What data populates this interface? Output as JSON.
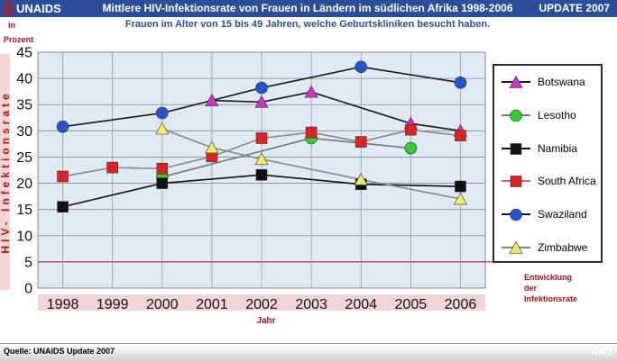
{
  "header": {
    "logo_text": "UNAIDS",
    "title": "Mittlere HIV-Infektionsrate von Frauen in Ländern im südlichen Afrika 1998-2006",
    "update": "UPDATE 2007",
    "subtitle": "Frauen im Alter von 15 bis 49 Jahren, welche Geburtskliniken besucht haben."
  },
  "colors": {
    "header_bg": "#2a4e99",
    "plot_bg": "#dfeaf5",
    "accent_red": "#b0121b",
    "band_pink": "#f4d5d5"
  },
  "footer": {
    "source": "Quelle: UNAIDS Update 2007",
    "mark": "RAO"
  },
  "chart_data": {
    "type": "line",
    "title": "Mittlere HIV-Infektionsrate von Frauen in Ländern im südlichen Afrika 1998-2006",
    "subtitle": "Frauen im Alter von 15 bis 49 Jahren, welche Geburtskliniken besucht haben.",
    "xlabel": "Jahr",
    "ylabel": "HIV- Infektionsrate",
    "unit_label_1": "in",
    "unit_label_2": "Prozent",
    "categories": [
      "1998",
      "1999",
      "2000",
      "2001",
      "2002",
      "2003",
      "2004",
      "2005",
      "2006"
    ],
    "yticks": [
      "0",
      "5",
      "10",
      "15",
      "20",
      "25",
      "30",
      "35",
      "40",
      "45"
    ],
    "ylim": [
      0,
      45
    ],
    "grid": true,
    "legend_position": "right",
    "reference_line": {
      "value": 5,
      "label": "Entwicklung\nder\nInfektionsrate"
    },
    "series": [
      {
        "name": "Botswana",
        "color": "#cc33cc",
        "marker": "triangle",
        "line_color": "#1a1a1a",
        "values": [
          null,
          null,
          null,
          35.8,
          35.5,
          37.4,
          null,
          31.4,
          30.0
        ]
      },
      {
        "name": "Lesotho",
        "color": "#33cc33",
        "marker": "circle",
        "line_color": "#777777",
        "values": [
          null,
          null,
          21.2,
          null,
          null,
          28.6,
          null,
          26.7,
          null
        ]
      },
      {
        "name": "Namibia",
        "color": "#111111",
        "marker": "square",
        "line_color": "#111111",
        "values": [
          15.5,
          null,
          20.0,
          null,
          21.6,
          null,
          19.8,
          null,
          19.4
        ]
      },
      {
        "name": "South Africa",
        "color": "#dd2222",
        "marker": "square",
        "line_color": "#888888",
        "values": [
          21.3,
          23.0,
          22.8,
          25.1,
          28.6,
          29.7,
          27.9,
          30.2,
          29.1
        ]
      },
      {
        "name": "Swaziland",
        "color": "#2255cc",
        "marker": "circle",
        "line_color": "#1a1a1a",
        "values": [
          30.8,
          null,
          33.4,
          null,
          38.2,
          null,
          42.2,
          null,
          39.2
        ]
      },
      {
        "name": "Zimbabwe",
        "color": "#eeee66",
        "marker": "triangle",
        "line_color": "#888888",
        "values": [
          null,
          null,
          30.4,
          26.8,
          24.6,
          null,
          20.7,
          null,
          17.0
        ]
      }
    ]
  }
}
